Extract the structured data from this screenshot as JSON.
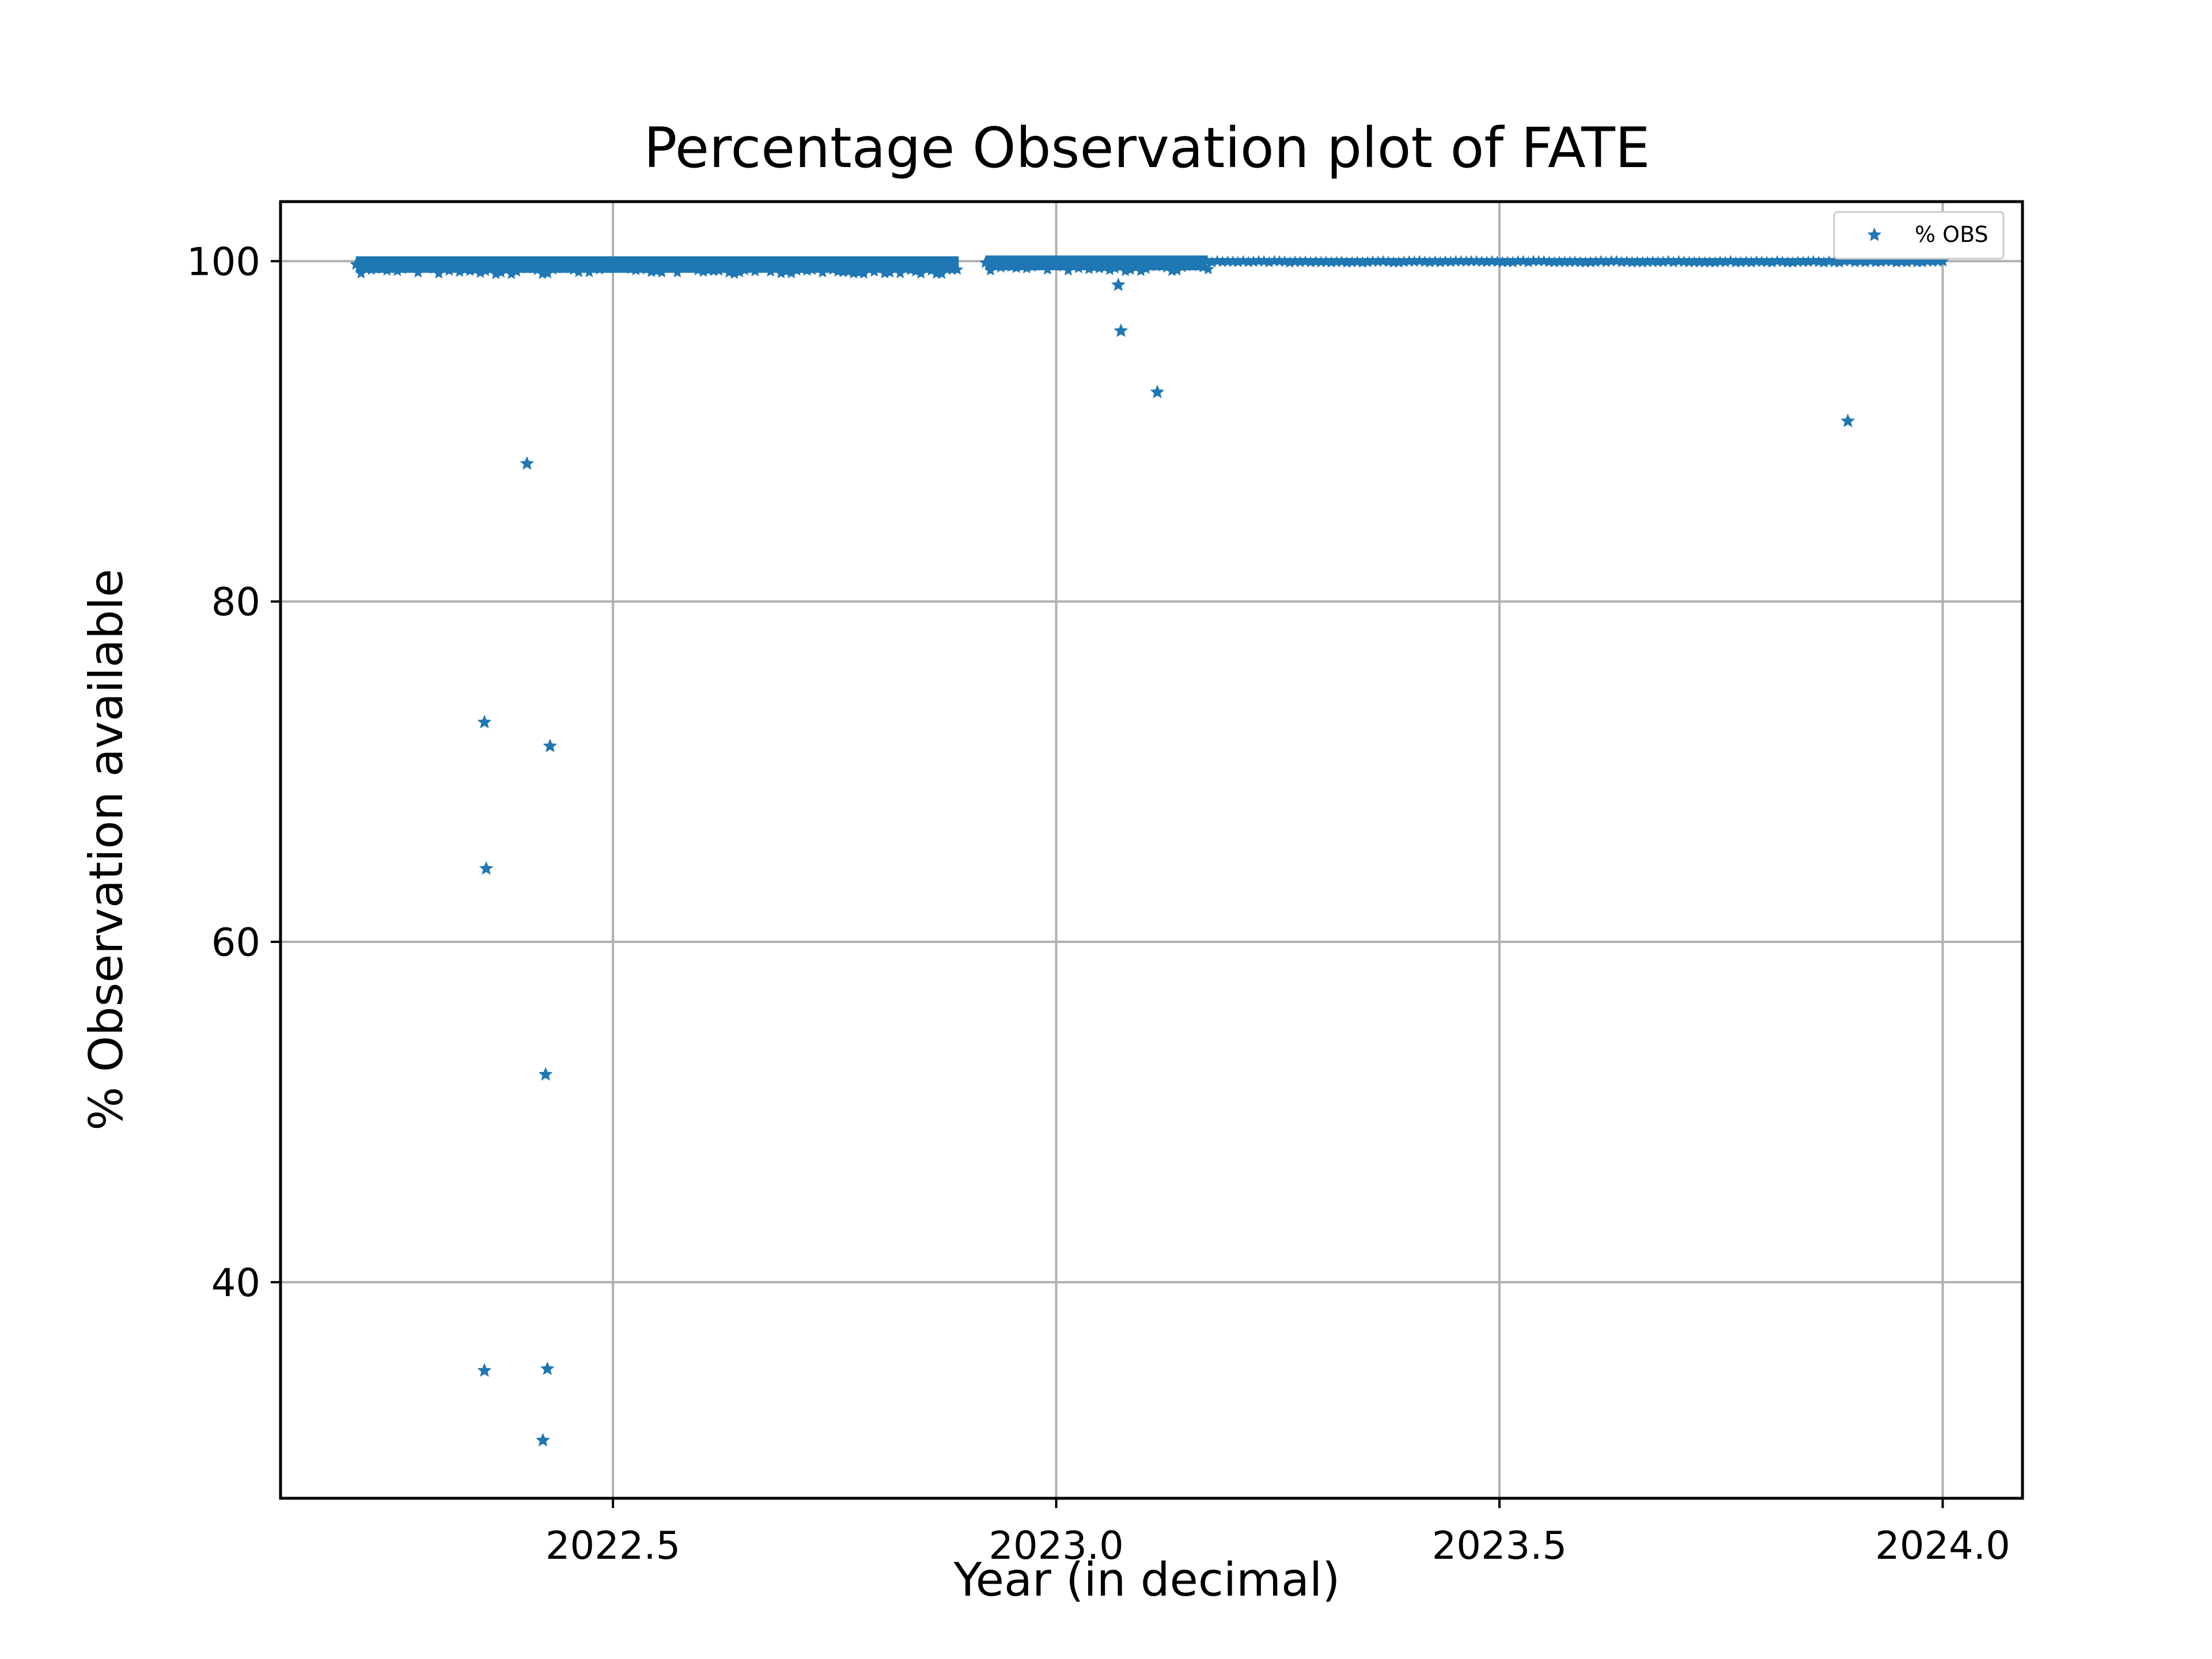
{
  "chart_data": {
    "type": "scatter",
    "title": "Percentage Observation plot of FATE",
    "xlabel": "Year (in decimal)",
    "ylabel": "% Observation available",
    "xlim": [
      2022.125,
      2024.09
    ],
    "ylim": [
      27.3,
      103.5
    ],
    "xticks": [
      2022.5,
      2023.0,
      2023.5,
      2024.0
    ],
    "xtick_labels": [
      "2022.5",
      "2023.0",
      "2023.5",
      "2024.0"
    ],
    "yticks": [
      40,
      60,
      80,
      100
    ],
    "ytick_labels": [
      "40",
      "60",
      "80",
      "100"
    ],
    "grid": true,
    "legend_position": "top-right",
    "marker": "star",
    "colors": {
      "series": "#1f77b4",
      "grid": "#b0b0b0",
      "axes": "#000000"
    },
    "series": [
      {
        "name": "% OBS",
        "dense_bands": [
          {
            "x_start": 2022.21,
            "x_end": 2022.89,
            "y": 99.8,
            "y_spread": 0.35
          },
          {
            "x_start": 2022.92,
            "x_end": 2023.17,
            "y": 99.9,
            "y_spread": 0.3
          },
          {
            "x_start": 2023.17,
            "x_end": 2024.0,
            "y": 100.0,
            "y_spread": 0.05
          }
        ],
        "points": [
          {
            "x": 2022.355,
            "y": 72.9
          },
          {
            "x": 2022.357,
            "y": 64.3
          },
          {
            "x": 2022.355,
            "y": 34.8
          },
          {
            "x": 2022.403,
            "y": 88.1
          },
          {
            "x": 2022.421,
            "y": 30.7
          },
          {
            "x": 2022.424,
            "y": 52.2
          },
          {
            "x": 2022.426,
            "y": 34.9
          },
          {
            "x": 2022.429,
            "y": 71.5
          },
          {
            "x": 2023.07,
            "y": 98.6
          },
          {
            "x": 2023.073,
            "y": 95.9
          },
          {
            "x": 2023.114,
            "y": 92.3
          },
          {
            "x": 2023.893,
            "y": 90.6
          }
        ]
      }
    ]
  }
}
